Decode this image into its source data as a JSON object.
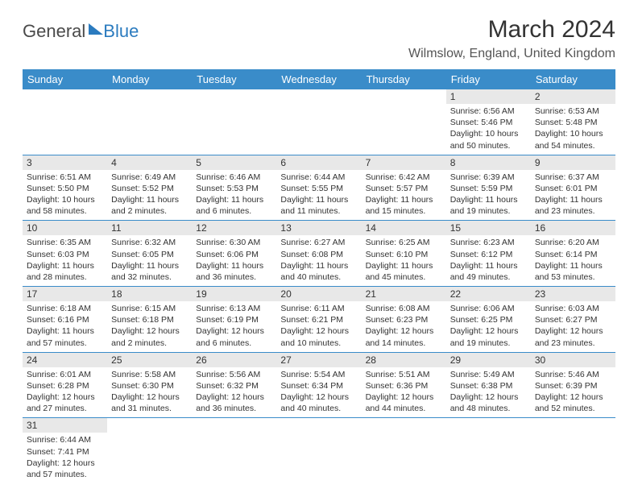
{
  "logo": {
    "text1": "General",
    "text2": "Blue"
  },
  "title": "March 2024",
  "location": "Wilmslow, England, United Kingdom",
  "headers": [
    "Sunday",
    "Monday",
    "Tuesday",
    "Wednesday",
    "Thursday",
    "Friday",
    "Saturday"
  ],
  "colors": {
    "headerBg": "#3a8cc9",
    "dayNumBg": "#e8e8e8",
    "border": "#3a8cc9"
  },
  "weeks": [
    [
      null,
      null,
      null,
      null,
      null,
      {
        "n": "1",
        "sr": "6:56 AM",
        "ss": "5:46 PM",
        "dl": "10 hours and 50 minutes."
      },
      {
        "n": "2",
        "sr": "6:53 AM",
        "ss": "5:48 PM",
        "dl": "10 hours and 54 minutes."
      }
    ],
    [
      {
        "n": "3",
        "sr": "6:51 AM",
        "ss": "5:50 PM",
        "dl": "10 hours and 58 minutes."
      },
      {
        "n": "4",
        "sr": "6:49 AM",
        "ss": "5:52 PM",
        "dl": "11 hours and 2 minutes."
      },
      {
        "n": "5",
        "sr": "6:46 AM",
        "ss": "5:53 PM",
        "dl": "11 hours and 6 minutes."
      },
      {
        "n": "6",
        "sr": "6:44 AM",
        "ss": "5:55 PM",
        "dl": "11 hours and 11 minutes."
      },
      {
        "n": "7",
        "sr": "6:42 AM",
        "ss": "5:57 PM",
        "dl": "11 hours and 15 minutes."
      },
      {
        "n": "8",
        "sr": "6:39 AM",
        "ss": "5:59 PM",
        "dl": "11 hours and 19 minutes."
      },
      {
        "n": "9",
        "sr": "6:37 AM",
        "ss": "6:01 PM",
        "dl": "11 hours and 23 minutes."
      }
    ],
    [
      {
        "n": "10",
        "sr": "6:35 AM",
        "ss": "6:03 PM",
        "dl": "11 hours and 28 minutes."
      },
      {
        "n": "11",
        "sr": "6:32 AM",
        "ss": "6:05 PM",
        "dl": "11 hours and 32 minutes."
      },
      {
        "n": "12",
        "sr": "6:30 AM",
        "ss": "6:06 PM",
        "dl": "11 hours and 36 minutes."
      },
      {
        "n": "13",
        "sr": "6:27 AM",
        "ss": "6:08 PM",
        "dl": "11 hours and 40 minutes."
      },
      {
        "n": "14",
        "sr": "6:25 AM",
        "ss": "6:10 PM",
        "dl": "11 hours and 45 minutes."
      },
      {
        "n": "15",
        "sr": "6:23 AM",
        "ss": "6:12 PM",
        "dl": "11 hours and 49 minutes."
      },
      {
        "n": "16",
        "sr": "6:20 AM",
        "ss": "6:14 PM",
        "dl": "11 hours and 53 minutes."
      }
    ],
    [
      {
        "n": "17",
        "sr": "6:18 AM",
        "ss": "6:16 PM",
        "dl": "11 hours and 57 minutes."
      },
      {
        "n": "18",
        "sr": "6:15 AM",
        "ss": "6:18 PM",
        "dl": "12 hours and 2 minutes."
      },
      {
        "n": "19",
        "sr": "6:13 AM",
        "ss": "6:19 PM",
        "dl": "12 hours and 6 minutes."
      },
      {
        "n": "20",
        "sr": "6:11 AM",
        "ss": "6:21 PM",
        "dl": "12 hours and 10 minutes."
      },
      {
        "n": "21",
        "sr": "6:08 AM",
        "ss": "6:23 PM",
        "dl": "12 hours and 14 minutes."
      },
      {
        "n": "22",
        "sr": "6:06 AM",
        "ss": "6:25 PM",
        "dl": "12 hours and 19 minutes."
      },
      {
        "n": "23",
        "sr": "6:03 AM",
        "ss": "6:27 PM",
        "dl": "12 hours and 23 minutes."
      }
    ],
    [
      {
        "n": "24",
        "sr": "6:01 AM",
        "ss": "6:28 PM",
        "dl": "12 hours and 27 minutes."
      },
      {
        "n": "25",
        "sr": "5:58 AM",
        "ss": "6:30 PM",
        "dl": "12 hours and 31 minutes."
      },
      {
        "n": "26",
        "sr": "5:56 AM",
        "ss": "6:32 PM",
        "dl": "12 hours and 36 minutes."
      },
      {
        "n": "27",
        "sr": "5:54 AM",
        "ss": "6:34 PM",
        "dl": "12 hours and 40 minutes."
      },
      {
        "n": "28",
        "sr": "5:51 AM",
        "ss": "6:36 PM",
        "dl": "12 hours and 44 minutes."
      },
      {
        "n": "29",
        "sr": "5:49 AM",
        "ss": "6:38 PM",
        "dl": "12 hours and 48 minutes."
      },
      {
        "n": "30",
        "sr": "5:46 AM",
        "ss": "6:39 PM",
        "dl": "12 hours and 52 minutes."
      }
    ],
    [
      {
        "n": "31",
        "sr": "6:44 AM",
        "ss": "7:41 PM",
        "dl": "12 hours and 57 minutes."
      },
      null,
      null,
      null,
      null,
      null,
      null
    ]
  ]
}
